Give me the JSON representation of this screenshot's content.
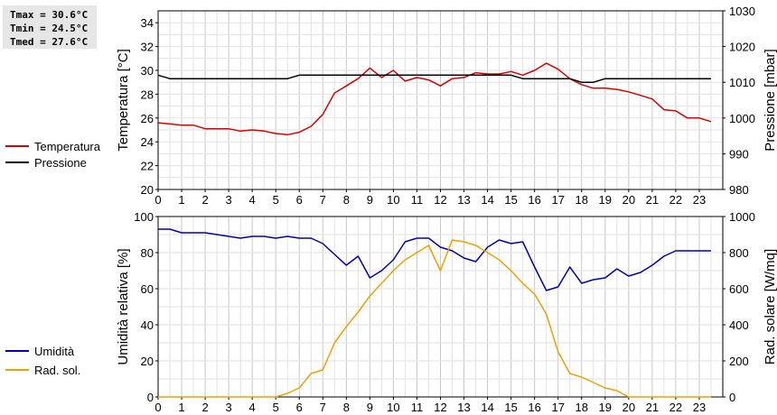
{
  "stats": {
    "tmax": "Tmax = 30.6°C",
    "tmin": "Tmin = 24.5°C",
    "tmed": "Tmed = 27.6°C"
  },
  "colors": {
    "temperature": "#dd0000",
    "pressure": "#000000",
    "humidity": "#0000bb",
    "radiation": "#f0a000",
    "grid_minor": "#e2e2e2",
    "grid_major": "#c8c8c8"
  },
  "chart_data": [
    {
      "type": "line",
      "x_ticks": [
        "0",
        "1",
        "2",
        "3",
        "4",
        "5",
        "6",
        "7",
        "8",
        "9",
        "10",
        "11",
        "12",
        "13",
        "14",
        "15",
        "16",
        "17",
        "18",
        "19",
        "20",
        "21",
        "22",
        "23"
      ],
      "xlim": [
        0,
        24
      ],
      "ylabel_left": "Temperatura [°C]",
      "ylabel_right": "Pressione [mbar]",
      "ylim_left": [
        20,
        35
      ],
      "ylim_right": [
        980,
        1030
      ],
      "yticks_left": [
        "20",
        "22",
        "24",
        "26",
        "28",
        "30",
        "32",
        "34"
      ],
      "yticks_right": [
        "980",
        "990",
        "1000",
        "1010",
        "1020",
        "1030"
      ],
      "series": [
        {
          "name": "Temperatura",
          "axis": "left",
          "x": [
            0,
            0.5,
            1,
            1.5,
            2,
            2.5,
            3,
            3.5,
            4,
            4.5,
            5,
            5.5,
            6,
            6.5,
            7,
            7.5,
            8,
            8.5,
            9,
            9.5,
            10,
            10.5,
            11,
            11.5,
            12,
            12.5,
            13,
            13.5,
            14,
            14.5,
            15,
            15.5,
            16,
            16.5,
            17,
            17.5,
            18,
            18.5,
            19,
            19.5,
            20,
            20.5,
            21,
            21.5,
            22,
            22.5,
            23,
            23.5
          ],
          "values": [
            25.6,
            25.5,
            25.4,
            25.4,
            25.1,
            25.1,
            25.1,
            24.9,
            25.0,
            24.9,
            24.7,
            24.6,
            24.8,
            25.3,
            26.3,
            28.1,
            28.7,
            29.3,
            30.2,
            29.4,
            30.0,
            29.1,
            29.4,
            29.2,
            28.7,
            29.3,
            29.4,
            29.8,
            29.7,
            29.7,
            29.9,
            29.6,
            30.0,
            30.6,
            30.1,
            29.3,
            28.8,
            28.5,
            28.5,
            28.4,
            28.2,
            27.9,
            27.6,
            26.7,
            26.6,
            26.0,
            26.0,
            25.7
          ]
        },
        {
          "name": "Pressione",
          "axis": "right",
          "x": [
            0,
            0.5,
            5.5,
            6,
            6.5,
            15,
            15.5,
            17.5,
            18,
            18.5,
            19,
            19.5,
            23.5
          ],
          "values": [
            1012,
            1011,
            1011,
            1012,
            1012,
            1012,
            1011,
            1011,
            1010,
            1010,
            1011,
            1011,
            1011
          ]
        }
      ]
    },
    {
      "type": "line",
      "x_ticks": [
        "0",
        "1",
        "2",
        "3",
        "4",
        "5",
        "6",
        "7",
        "8",
        "9",
        "10",
        "11",
        "12",
        "13",
        "14",
        "15",
        "16",
        "17",
        "18",
        "19",
        "20",
        "21",
        "22",
        "23"
      ],
      "xlim": [
        0,
        24
      ],
      "ylabel_left": "Umidità relativa [%]",
      "ylabel_right": "Rad. solare [W/mq]",
      "ylim_left": [
        0,
        100
      ],
      "ylim_right": [
        0,
        1000
      ],
      "yticks_left": [
        "0",
        "20",
        "40",
        "60",
        "80",
        "100"
      ],
      "yticks_right": [
        "0",
        "200",
        "400",
        "600",
        "800",
        "1000"
      ],
      "series": [
        {
          "name": "Umidità",
          "axis": "left",
          "x": [
            0,
            0.5,
            1,
            1.5,
            2,
            2.5,
            3,
            3.5,
            4,
            4.5,
            5,
            5.5,
            6,
            6.5,
            7,
            7.5,
            8,
            8.5,
            9,
            9.5,
            10,
            10.5,
            11,
            11.5,
            12,
            12.5,
            13,
            13.5,
            14,
            14.5,
            15,
            15.5,
            16,
            16.5,
            17,
            17.5,
            18,
            18.5,
            19,
            19.5,
            20,
            20.5,
            21,
            21.5,
            22,
            22.5,
            23,
            23.5
          ],
          "values": [
            93,
            93,
            91,
            91,
            91,
            90,
            89,
            88,
            89,
            89,
            88,
            89,
            88,
            88,
            85,
            79,
            73,
            78,
            66,
            70,
            76,
            86,
            88,
            88,
            83,
            81,
            77,
            75,
            83,
            87,
            85,
            86,
            72,
            59,
            61,
            72,
            63,
            65,
            66,
            71,
            67,
            69,
            73,
            78,
            81,
            81,
            81,
            81
          ]
        },
        {
          "name": "Rad. sol.",
          "axis": "right",
          "x": [
            0,
            0.5,
            1,
            1.5,
            2,
            2.5,
            3,
            3.5,
            4,
            4.5,
            5,
            5.5,
            6,
            6.5,
            7,
            7.5,
            8,
            8.5,
            9,
            9.5,
            10,
            10.5,
            11,
            11.5,
            12,
            12.5,
            13,
            13.5,
            14,
            14.5,
            15,
            15.5,
            16,
            16.5,
            17,
            17.5,
            18,
            18.5,
            19,
            19.5,
            20,
            20.5,
            21,
            21.5,
            22,
            22.5,
            23,
            23.5
          ],
          "values": [
            0,
            0,
            0,
            0,
            0,
            0,
            0,
            0,
            0,
            0,
            0,
            20,
            50,
            130,
            150,
            300,
            390,
            470,
            560,
            630,
            700,
            760,
            800,
            840,
            700,
            870,
            860,
            840,
            800,
            760,
            700,
            630,
            570,
            460,
            250,
            130,
            110,
            80,
            50,
            35,
            0,
            0,
            0,
            0,
            0,
            0,
            0,
            0
          ]
        }
      ]
    }
  ]
}
